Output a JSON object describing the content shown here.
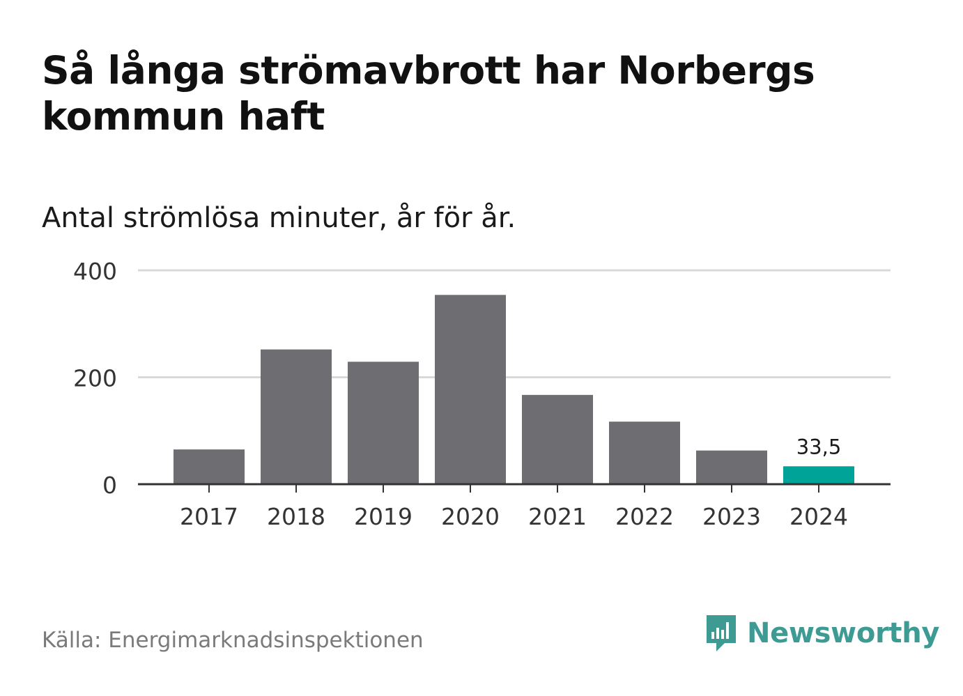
{
  "header": {
    "title": "Så långa strömavbrott har Norbergs kommun haft",
    "subtitle": "Antal strömlösa minuter, år för år."
  },
  "footer": {
    "source": "Källa: Energimarknadsinspektionen",
    "brand": "Newsworthy"
  },
  "colors": {
    "bar": "#6e6d72",
    "highlight": "#00a398",
    "grid": "#d9d9d9",
    "axis": "#333333",
    "brand": "#3d9b94"
  },
  "chart_data": {
    "type": "bar",
    "title": "Så långa strömavbrott har Norbergs kommun haft",
    "subtitle": "Antal strömlösa minuter, år för år.",
    "xlabel": "",
    "ylabel": "",
    "categories": [
      "2017",
      "2018",
      "2019",
      "2020",
      "2021",
      "2022",
      "2023",
      "2024"
    ],
    "values": [
      65,
      252,
      229,
      354,
      167,
      117,
      63,
      33.5
    ],
    "ylim": [
      0,
      400
    ],
    "yticks": [
      "0",
      "200",
      "400"
    ],
    "ytick_values": [
      0,
      200,
      400
    ],
    "grid": true,
    "highlight_index": 7,
    "annotation": {
      "index": 7,
      "label": "33,5"
    }
  }
}
